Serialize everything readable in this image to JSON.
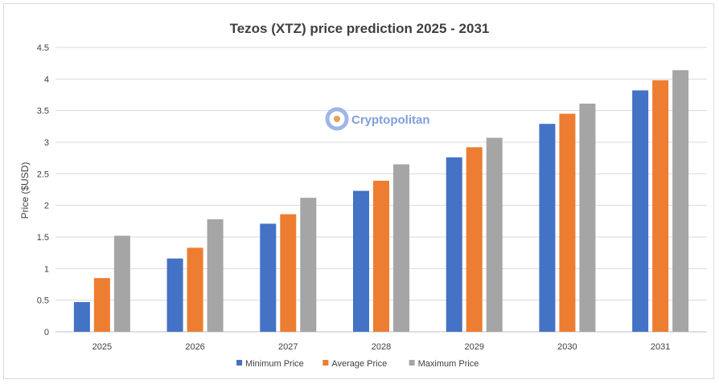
{
  "chart_data": {
    "type": "bar",
    "title": "Tezos (XTZ) price prediction 2025 - 2031",
    "ylabel": "Price ($USD)",
    "xlabel": "",
    "ylim": [
      0,
      4.5
    ],
    "yticks": [
      "0",
      "0.5",
      "1",
      "1.5",
      "2",
      "2.5",
      "3",
      "3.5",
      "4",
      "4.5"
    ],
    "grid": true,
    "legend_position": "bottom",
    "categories": [
      "2025",
      "2026",
      "2027",
      "2028",
      "2029",
      "2030",
      "2031"
    ],
    "series": [
      {
        "name": "Minimum Price",
        "color": "#4472c4",
        "values": [
          0.47,
          1.16,
          1.71,
          2.23,
          2.76,
          3.29,
          3.82
        ]
      },
      {
        "name": "Average Price",
        "color": "#ed7d31",
        "values": [
          0.85,
          1.33,
          1.86,
          2.39,
          2.92,
          3.45,
          3.98
        ]
      },
      {
        "name": "Maximum Price",
        "color": "#a5a5a5",
        "values": [
          1.52,
          1.78,
          2.12,
          2.65,
          3.07,
          3.61,
          4.14
        ]
      }
    ]
  },
  "watermark": {
    "text": "Cryptopolitan",
    "icon": "cryptopolitan-logo-icon"
  }
}
